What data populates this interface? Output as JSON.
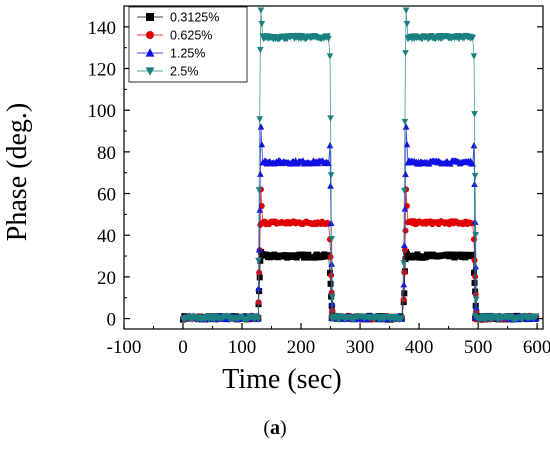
{
  "caption": {
    "prefix": "(",
    "letter": "a",
    "suffix": ")"
  },
  "chart_data": {
    "type": "scatter",
    "xlabel": "Time (sec)",
    "ylabel": "Phase (deg.)",
    "xlim": [
      -100,
      610
    ],
    "ylim": [
      -5,
      150
    ],
    "xticks": [
      -100,
      0,
      100,
      200,
      300,
      400,
      500,
      600
    ],
    "yticks": [
      0,
      20,
      40,
      60,
      80,
      100,
      120,
      140
    ],
    "grid": false,
    "legend": "top-left",
    "segments": {
      "off": [
        [
          0,
          128
        ],
        [
          252,
          372
        ],
        [
          495,
          600
        ]
      ],
      "on": [
        [
          132,
          248
        ],
        [
          378,
          492
        ]
      ]
    },
    "series": [
      {
        "name": "0.3125%",
        "marker": "square",
        "color": "#000000",
        "on_level": 30,
        "spike_up": 32,
        "spike_down": 22
      },
      {
        "name": "0.625%",
        "marker": "circle",
        "color": "#e00000",
        "on_level": 46,
        "spike_up": 62,
        "spike_down": 38
      },
      {
        "name": "1.25%",
        "marker": "triangle-up",
        "color": "#1010e0",
        "on_level": 75,
        "spike_up": 92,
        "spike_down": 83
      },
      {
        "name": "2.5%",
        "marker": "triangle-down",
        "color": "#1a8080",
        "on_level": 135,
        "spike_up": 148,
        "spike_down": 126
      }
    ]
  }
}
